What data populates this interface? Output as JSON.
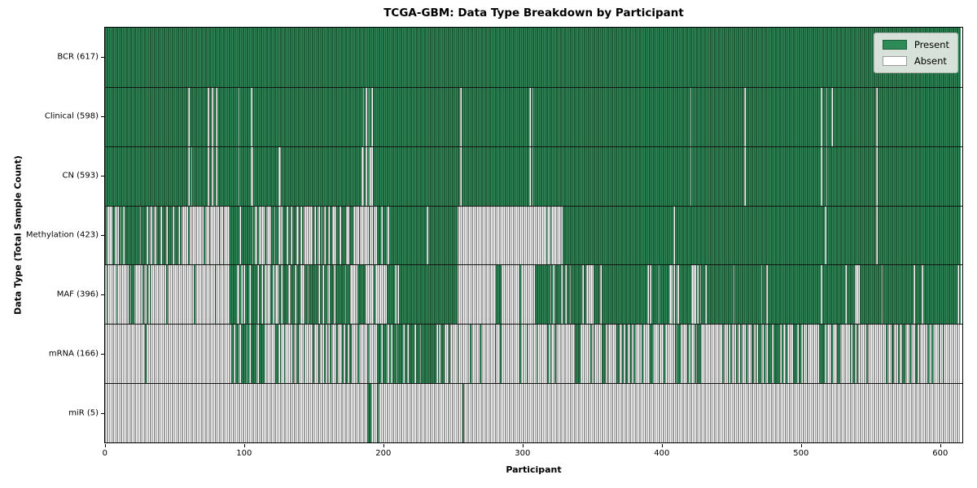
{
  "chart_data": {
    "type": "heatmap",
    "title": "TCGA-GBM: Data Type Breakdown by Participant",
    "xlabel": "Participant",
    "ylabel": "Data Type (Total Sample Count)",
    "x_range": [
      0,
      617
    ],
    "x_ticks": [
      0,
      100,
      200,
      300,
      400,
      500,
      600
    ],
    "grid": false,
    "legend_position": "upper right",
    "legend": {
      "present": "Present",
      "absent": "Absent"
    },
    "colors": {
      "present": "#2E8B57",
      "present_edge": "#1E5C3A",
      "absent": "#FFFFFF",
      "absent_edge": "#9A9A9A"
    },
    "rows": [
      {
        "name": "BCR",
        "label": "BCR (617)",
        "total": 617,
        "absent": []
      },
      {
        "name": "Clinical",
        "label": "Clinical (598)",
        "total": 598,
        "absent": [
          60,
          74,
          77,
          80,
          96,
          105,
          186,
          188,
          190,
          192,
          256,
          306,
          308,
          422,
          461,
          516,
          520,
          524,
          556
        ]
      },
      {
        "name": "CN",
        "label": "CN (593)",
        "total": 593,
        "absent": [
          60,
          62,
          74,
          77,
          80,
          96,
          105,
          106,
          125,
          126,
          185,
          186,
          188,
          190,
          191,
          192,
          256,
          306,
          308,
          422,
          461,
          516,
          520,
          556
        ]
      },
      {
        "name": "Methylation",
        "label": "Methylation (423)",
        "total": 423,
        "segments": [
          [
            0,
            58,
            0.7
          ],
          [
            58,
            90,
            0.15
          ],
          [
            90,
            105,
            0.8
          ],
          [
            105,
            127,
            0.45
          ],
          [
            127,
            138,
            0.85
          ],
          [
            138,
            162,
            0.35
          ],
          [
            162,
            176,
            0.8
          ],
          [
            176,
            196,
            0.25
          ],
          [
            196,
            254,
            0.9
          ],
          [
            254,
            318,
            0.04
          ],
          [
            318,
            319,
            1
          ],
          [
            319,
            330,
            0.05
          ],
          [
            330,
            410,
            1
          ],
          [
            410,
            411,
            0
          ],
          [
            411,
            519,
            1
          ],
          [
            519,
            520,
            0
          ],
          [
            520,
            556,
            1
          ],
          [
            556,
            557,
            0
          ],
          [
            557,
            617,
            1
          ]
        ]
      },
      {
        "name": "MAF",
        "label": "MAF (396)",
        "total": 396,
        "segments": [
          [
            0,
            18,
            0.1
          ],
          [
            18,
            33,
            0.4
          ],
          [
            33,
            90,
            0.05
          ],
          [
            90,
            110,
            0.7
          ],
          [
            110,
            122,
            0.3
          ],
          [
            122,
            134,
            0.6
          ],
          [
            134,
            146,
            0.5
          ],
          [
            146,
            156,
            0.8
          ],
          [
            156,
            168,
            0.4
          ],
          [
            168,
            177,
            0.8
          ],
          [
            177,
            182,
            0.2
          ],
          [
            182,
            188,
            0.8
          ],
          [
            188,
            206,
            0.15
          ],
          [
            206,
            254,
            0.9
          ],
          [
            254,
            282,
            0.05
          ],
          [
            282,
            286,
            0.9
          ],
          [
            286,
            310,
            0.05
          ],
          [
            310,
            345,
            0.85
          ],
          [
            345,
            355,
            0.6
          ],
          [
            355,
            388,
            0.95
          ],
          [
            388,
            396,
            0.6
          ],
          [
            396,
            407,
            0.95
          ],
          [
            407,
            413,
            0.5
          ],
          [
            413,
            423,
            0.9
          ],
          [
            423,
            434,
            0.55
          ],
          [
            434,
            472,
            0.97
          ],
          [
            472,
            478,
            0.6
          ],
          [
            478,
            512,
            0.97
          ],
          [
            512,
            522,
            0.8
          ],
          [
            522,
            539,
            0.95
          ],
          [
            539,
            545,
            0.6
          ],
          [
            545,
            617,
            0.97
          ]
        ]
      },
      {
        "name": "mRNA",
        "label": "mRNA (166)",
        "total": 166,
        "segments": [
          [
            0,
            22,
            0.04
          ],
          [
            22,
            32,
            0.2
          ],
          [
            32,
            90,
            0.02
          ],
          [
            90,
            110,
            0.6
          ],
          [
            110,
            175,
            0.35
          ],
          [
            175,
            186,
            0.1
          ],
          [
            186,
            206,
            0.5
          ],
          [
            206,
            245,
            0.7
          ],
          [
            245,
            310,
            0.1
          ],
          [
            310,
            350,
            0.2
          ],
          [
            350,
            470,
            0.35
          ],
          [
            470,
            530,
            0.45
          ],
          [
            530,
            560,
            0.15
          ],
          [
            560,
            590,
            0.3
          ],
          [
            590,
            617,
            0.1
          ]
        ]
      },
      {
        "name": "miR",
        "label": "miR (5)",
        "total": 5,
        "present": [
          189,
          190,
          191,
          196,
          258
        ]
      }
    ]
  }
}
